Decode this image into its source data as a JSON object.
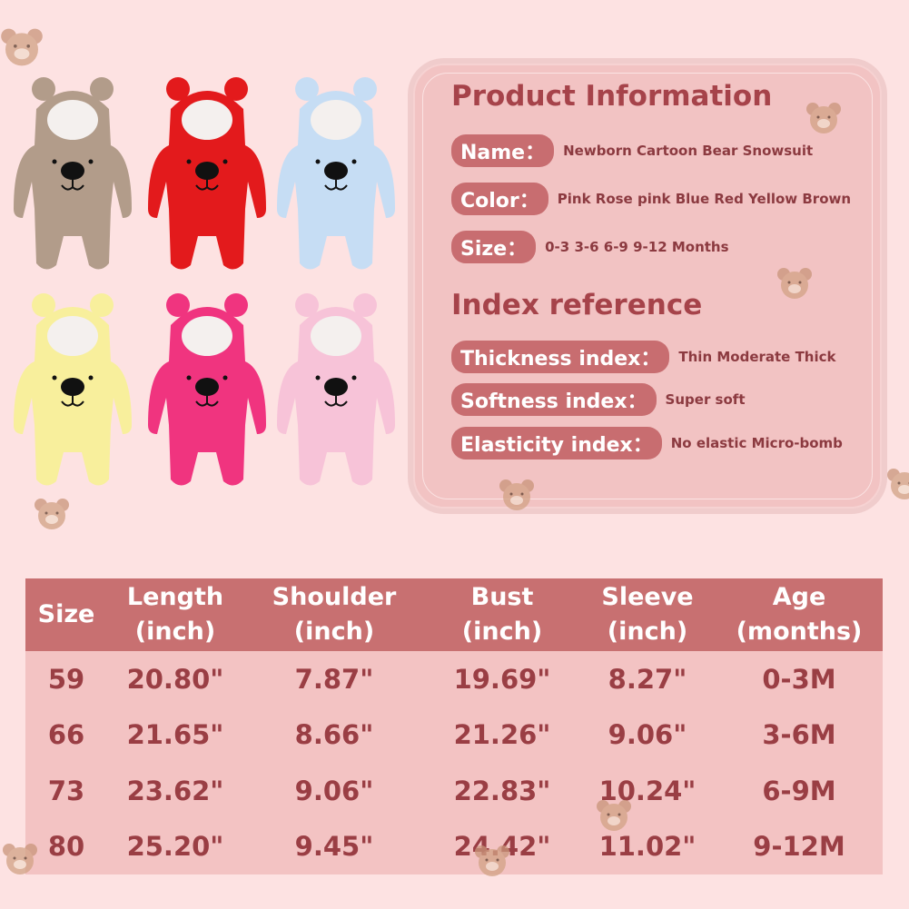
{
  "products": [
    {
      "color": "#b29c8a"
    },
    {
      "color": "#e31a1c"
    },
    {
      "color": "#c6ddf4"
    },
    {
      "color": "#f8ef9c"
    },
    {
      "color": "#f0347f"
    },
    {
      "color": "#f7c3d8"
    }
  ],
  "info": {
    "title": "Product Information",
    "name_label": "Name：",
    "name_value": "Newborn Cartoon Bear Snowsuit",
    "color_label": "Color：",
    "color_value": "Pink Rose pink Blue Red Yellow Brown",
    "size_label": "Size：",
    "size_value": "0-3 3-6 6-9 9-12 Months",
    "index_title": "Index reference",
    "thickness_label": "Thickness index：",
    "thickness_value": "Thin Moderate Thick",
    "softness_label": "Softness index：",
    "softness_value": "Super soft",
    "elasticity_label": "Elasticity index：",
    "elasticity_value": "No elastic Micro-bomb"
  },
  "table": {
    "headers": [
      [
        "Size",
        ""
      ],
      [
        "Length",
        "(inch)"
      ],
      [
        "Shoulder",
        "(inch)"
      ],
      [
        "Bust",
        "(inch)"
      ],
      [
        "Sleeve",
        "(inch)"
      ],
      [
        "Age",
        "(months)"
      ]
    ],
    "rows": [
      [
        "59",
        "20.80\"",
        "7.87\"",
        "19.69\"",
        "8.27\"",
        "0-3M"
      ],
      [
        "66",
        "21.65\"",
        "8.66\"",
        "21.26\"",
        "9.06\"",
        "3-6M"
      ],
      [
        "73",
        "23.62\"",
        "9.06\"",
        "22.83\"",
        "10.24\"",
        "6-9M"
      ],
      [
        "80",
        "25.20\"",
        "9.45\"",
        "24.42\"",
        "11.02\"",
        "9-12M"
      ]
    ]
  },
  "colors": {
    "accent": "#c87071",
    "text": "#9a3e44",
    "background": "#fde2e2"
  }
}
